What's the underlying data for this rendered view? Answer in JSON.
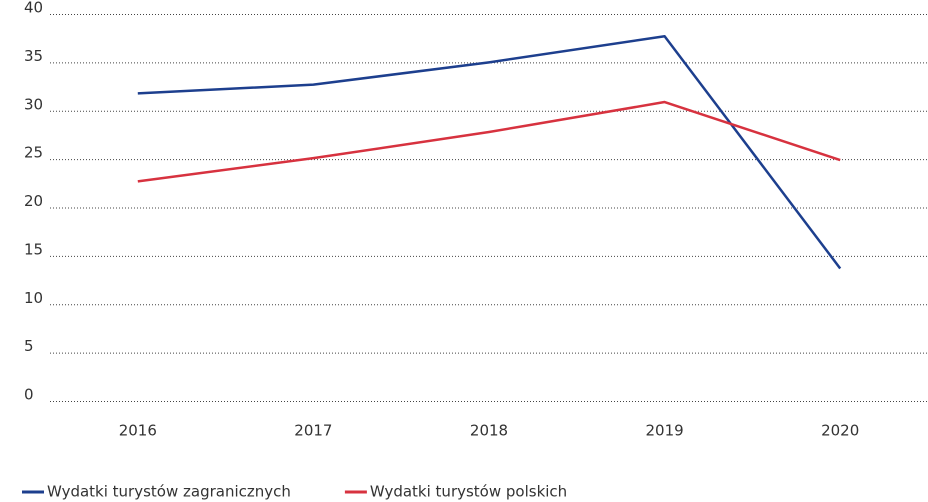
{
  "chart_data": {
    "type": "line",
    "categories": [
      "2016",
      "2017",
      "2018",
      "2019",
      "2020"
    ],
    "series": [
      {
        "name": "Wydatki turystów zagranicznych",
        "color": "#1d3f8e",
        "values": [
          31.8,
          32.7,
          35.0,
          37.7,
          13.7
        ]
      },
      {
        "name": "Wydatki turystów polskich",
        "color": "#d7323f",
        "values": [
          22.7,
          25.1,
          27.8,
          30.9,
          24.9
        ]
      }
    ],
    "ylim": [
      0,
      40
    ],
    "yticks": [
      0,
      5,
      10,
      15,
      20,
      25,
      30,
      35,
      40
    ],
    "grid": true,
    "legend": "bottom-left"
  }
}
